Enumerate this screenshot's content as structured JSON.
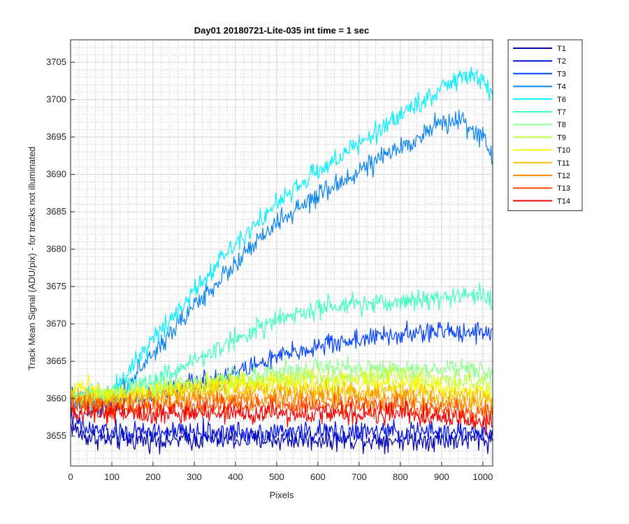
{
  "chart_data": {
    "type": "line",
    "title": "Day01 20180721-Lite-035 int time = 1 sec",
    "xlabel": "Pixels",
    "ylabel": "Track Mean Signal (ADU/pix) - for tracks not illuminated",
    "xlim": [
      0,
      1024
    ],
    "ylim": [
      3651,
      3708
    ],
    "xticks": [
      0,
      100,
      200,
      300,
      400,
      500,
      600,
      700,
      800,
      900,
      1000
    ],
    "yticks": [
      3655,
      3660,
      3665,
      3670,
      3675,
      3680,
      3685,
      3690,
      3695,
      3700,
      3705
    ],
    "grid": true,
    "minor_grid": true,
    "legend_position": "outside-top-right",
    "series": [
      {
        "name": "T1",
        "color": "#0000a8",
        "x": [
          0,
          30,
          100,
          200,
          300,
          400,
          500,
          600,
          700,
          800,
          900,
          1000,
          1024
        ],
        "y": [
          3656.5,
          3655,
          3654.5,
          3654.5,
          3654.5,
          3654.5,
          3654.5,
          3654.5,
          3654.5,
          3654.5,
          3654.5,
          3654.5,
          3654.5
        ]
      },
      {
        "name": "T2",
        "color": "#0010e0",
        "x": [
          0,
          30,
          100,
          200,
          300,
          400,
          500,
          600,
          700,
          800,
          900,
          1000,
          1024
        ],
        "y": [
          3658,
          3656,
          3655.5,
          3655.5,
          3655.5,
          3655.5,
          3655.5,
          3655.5,
          3655.5,
          3655.5,
          3655.5,
          3655.5,
          3655
        ]
      },
      {
        "name": "T3",
        "color": "#0040ff",
        "x": [
          0,
          30,
          100,
          200,
          300,
          400,
          500,
          600,
          700,
          800,
          900,
          1000,
          1024
        ],
        "y": [
          3660,
          3659,
          3659,
          3660.5,
          3662,
          3663.5,
          3665.5,
          3667,
          3668,
          3668.5,
          3669,
          3669,
          3669
        ]
      },
      {
        "name": "T4",
        "color": "#0a82f0",
        "x": [
          0,
          30,
          100,
          200,
          300,
          400,
          500,
          600,
          700,
          800,
          900,
          950,
          1000,
          1024
        ],
        "y": [
          3660,
          3659,
          3659.5,
          3666,
          3672.5,
          3678,
          3683.5,
          3687,
          3690.5,
          3693.5,
          3697,
          3697,
          3695,
          3692
        ]
      },
      {
        "name": "T6",
        "color": "#00f0ff",
        "x": [
          0,
          30,
          100,
          200,
          300,
          400,
          500,
          600,
          700,
          800,
          900,
          950,
          1000,
          1024
        ],
        "y": [
          3660.5,
          3660,
          3661,
          3668,
          3674.5,
          3681,
          3686,
          3690.5,
          3694,
          3698,
          3701.5,
          3703,
          3703,
          3700
        ]
      },
      {
        "name": "T7",
        "color": "#40ffc0",
        "x": [
          0,
          30,
          100,
          200,
          300,
          400,
          500,
          600,
          700,
          800,
          900,
          1000,
          1024
        ],
        "y": [
          3660.5,
          3660,
          3661,
          3662.5,
          3665,
          3668,
          3670.5,
          3672,
          3672.5,
          3673,
          3673.5,
          3674,
          3672.5
        ]
      },
      {
        "name": "T8",
        "color": "#90ff90",
        "x": [
          0,
          30,
          100,
          200,
          300,
          400,
          500,
          600,
          700,
          800,
          900,
          1000,
          1024
        ],
        "y": [
          3660.5,
          3660,
          3660.5,
          3661.5,
          3662,
          3663,
          3663.5,
          3664,
          3664,
          3664,
          3664,
          3664,
          3663.5
        ]
      },
      {
        "name": "T9",
        "color": "#c0ff40",
        "x": [
          0,
          30,
          100,
          200,
          300,
          400,
          500,
          600,
          700,
          800,
          900,
          1000,
          1024
        ],
        "y": [
          3660.5,
          3660,
          3660.5,
          3661,
          3661.5,
          3662,
          3662.5,
          3663,
          3663,
          3663,
          3662.5,
          3662,
          3662
        ]
      },
      {
        "name": "T10",
        "color": "#f8f800",
        "x": [
          0,
          30,
          100,
          200,
          300,
          400,
          500,
          600,
          700,
          800,
          900,
          1000,
          1024
        ],
        "y": [
          3661,
          3662,
          3660.5,
          3661,
          3661.5,
          3662,
          3662,
          3662,
          3662,
          3662,
          3661.5,
          3661,
          3660.5
        ]
      },
      {
        "name": "T11",
        "color": "#f8c000",
        "x": [
          0,
          30,
          100,
          200,
          300,
          400,
          500,
          600,
          700,
          800,
          900,
          1000,
          1024
        ],
        "y": [
          3660.5,
          3660,
          3660,
          3660.5,
          3661,
          3661,
          3661,
          3661,
          3661,
          3661,
          3660.5,
          3660,
          3659.5
        ]
      },
      {
        "name": "T12",
        "color": "#ff8c00",
        "x": [
          0,
          30,
          100,
          200,
          300,
          400,
          500,
          600,
          700,
          800,
          900,
          1000,
          1024
        ],
        "y": [
          3660,
          3659.5,
          3659.5,
          3659.5,
          3660,
          3660,
          3660,
          3660,
          3660,
          3660,
          3659.5,
          3659,
          3659
        ]
      },
      {
        "name": "T13",
        "color": "#ff4a00",
        "x": [
          0,
          30,
          100,
          200,
          300,
          400,
          500,
          600,
          700,
          800,
          900,
          1000,
          1024
        ],
        "y": [
          3659,
          3659,
          3658.5,
          3659,
          3659,
          3659,
          3659,
          3659,
          3659,
          3659,
          3658.5,
          3658,
          3658
        ]
      },
      {
        "name": "T14",
        "color": "#f00000",
        "x": [
          0,
          30,
          100,
          200,
          300,
          400,
          500,
          600,
          700,
          800,
          900,
          1000,
          1024
        ],
        "y": [
          3658,
          3658,
          3658,
          3658,
          3658,
          3658,
          3658,
          3658,
          3658,
          3658,
          3657.5,
          3657,
          3656.5
        ]
      }
    ]
  }
}
